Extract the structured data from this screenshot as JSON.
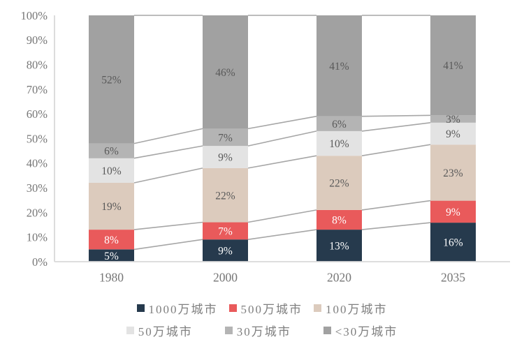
{
  "chart_data": {
    "type": "bar",
    "subtype": "stacked-100-percent",
    "title": "",
    "categories": [
      "1980",
      "2000",
      "2020",
      "2035"
    ],
    "series": [
      {
        "name": "1000万城市",
        "color": "#263A4D",
        "label_color": "#ffffff",
        "values": [
          5,
          9,
          13,
          16
        ]
      },
      {
        "name": "500万城市",
        "color": "#E95A5B",
        "label_color": "#ffffff",
        "values": [
          8,
          7,
          8,
          9
        ]
      },
      {
        "name": "100万城市",
        "color": "#DCCBBD",
        "label_color": "#595959",
        "values": [
          19,
          22,
          22,
          23
        ]
      },
      {
        "name": "50万城市",
        "color": "#E3E3E3",
        "label_color": "#595959",
        "values": [
          10,
          9,
          10,
          9
        ]
      },
      {
        "name": "30万城市",
        "color": "#B4B4B4",
        "label_color": "#595959",
        "values": [
          6,
          7,
          6,
          3
        ]
      },
      {
        "name": "<30万城市",
        "color": "#A1A1A1",
        "label_color": "#595959",
        "values": [
          52,
          46,
          41,
          41
        ]
      }
    ],
    "data_label_suffix": "%",
    "y_axis": {
      "min": 0,
      "max": 100,
      "ticks": [
        "0%",
        "10%",
        "20%",
        "30%",
        "40%",
        "50%",
        "60%",
        "70%",
        "80%",
        "90%",
        "100%"
      ]
    },
    "grid": false,
    "legend_position": "bottom",
    "legend_rows": [
      [
        0,
        1,
        2
      ],
      [
        3,
        4,
        5
      ]
    ],
    "colors": {
      "axis_line": "#D9D9D9",
      "connector_line": "#A6A6A6",
      "tick_label": "#767676",
      "category_label": "#767676",
      "legend_text": "#7f7f7f"
    }
  }
}
